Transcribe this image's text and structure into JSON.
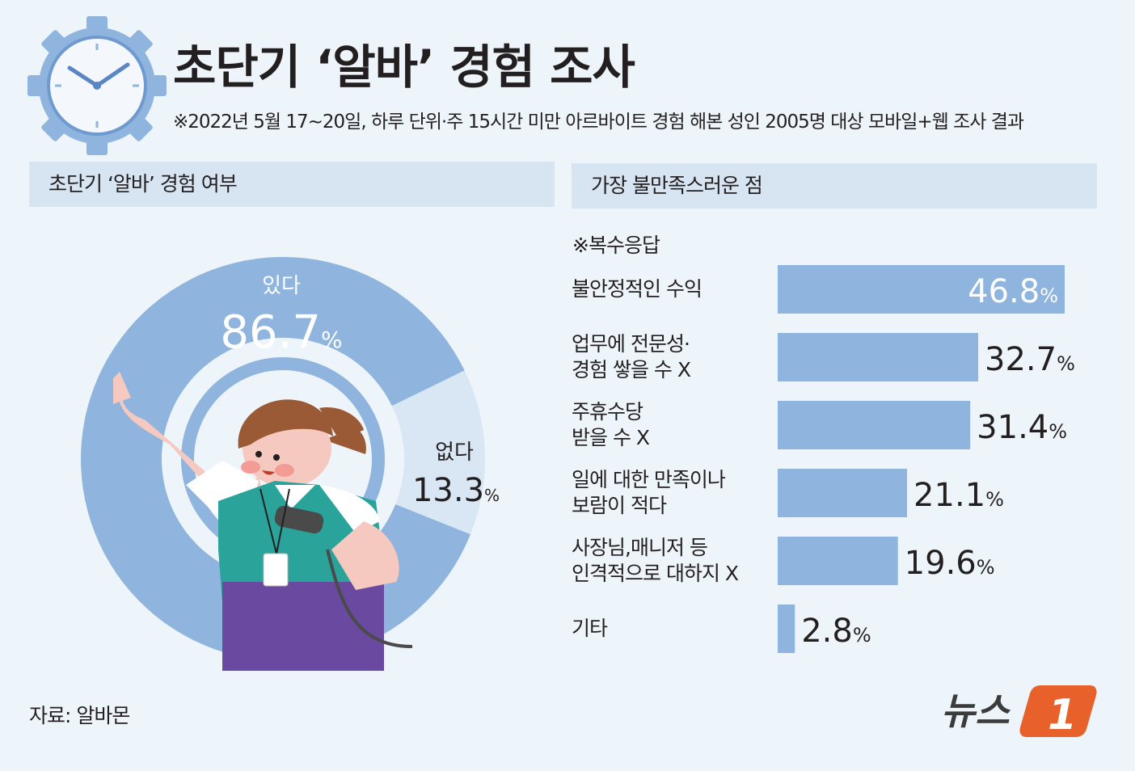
{
  "header": {
    "title": "초단기 ‘알바’ 경험 조사",
    "subtitle": "※2022년 5월 17~20일, 하루 단위·주 15시간 미만 아르바이트 경험 해본 성인 2005명 대상 모바일+웹 조사 결과"
  },
  "left_panel": {
    "header": "초단기 ‘알바’ 경험 여부"
  },
  "right_panel": {
    "header": "가장 불만족스러운 점",
    "note": "※복수응답"
  },
  "source": "자료: 알바몬",
  "logo": {
    "text": "뉴스",
    "mark": "1"
  },
  "colors": {
    "background": "#eef5fa",
    "header_band": "#d7e4f1",
    "primary": "#8fb4de",
    "light": "#d9e6f3",
    "logo_orange": "#e8602a",
    "text": "#231f20"
  },
  "chart_data": [
    {
      "type": "pie",
      "labels": [
        "있다",
        "없다"
      ],
      "values": [
        86.7,
        13.3
      ],
      "display": [
        "86.7",
        "13.3"
      ],
      "unit": "%",
      "colors": [
        "#8fb4de",
        "#d9e6f3"
      ]
    },
    {
      "type": "bar",
      "orientation": "horizontal",
      "categories": [
        [
          "불안정적인 수익"
        ],
        [
          "업무에 전문성·",
          "경험 쌓을 수 X"
        ],
        [
          "주휴수당",
          "받을 수 X"
        ],
        [
          "일에 대한 만족이나",
          "보람이 적다"
        ],
        [
          "사장님,매니저 등",
          "인격적으로 대하지 X"
        ],
        [
          "기타"
        ]
      ],
      "values": [
        46.8,
        32.7,
        31.4,
        21.1,
        19.6,
        2.8
      ],
      "display": [
        "46.8",
        "32.7",
        "31.4",
        "21.1",
        "19.6",
        "2.8"
      ],
      "unit": "%",
      "xlim": [
        0,
        50
      ],
      "color": "#8fb4de"
    }
  ]
}
